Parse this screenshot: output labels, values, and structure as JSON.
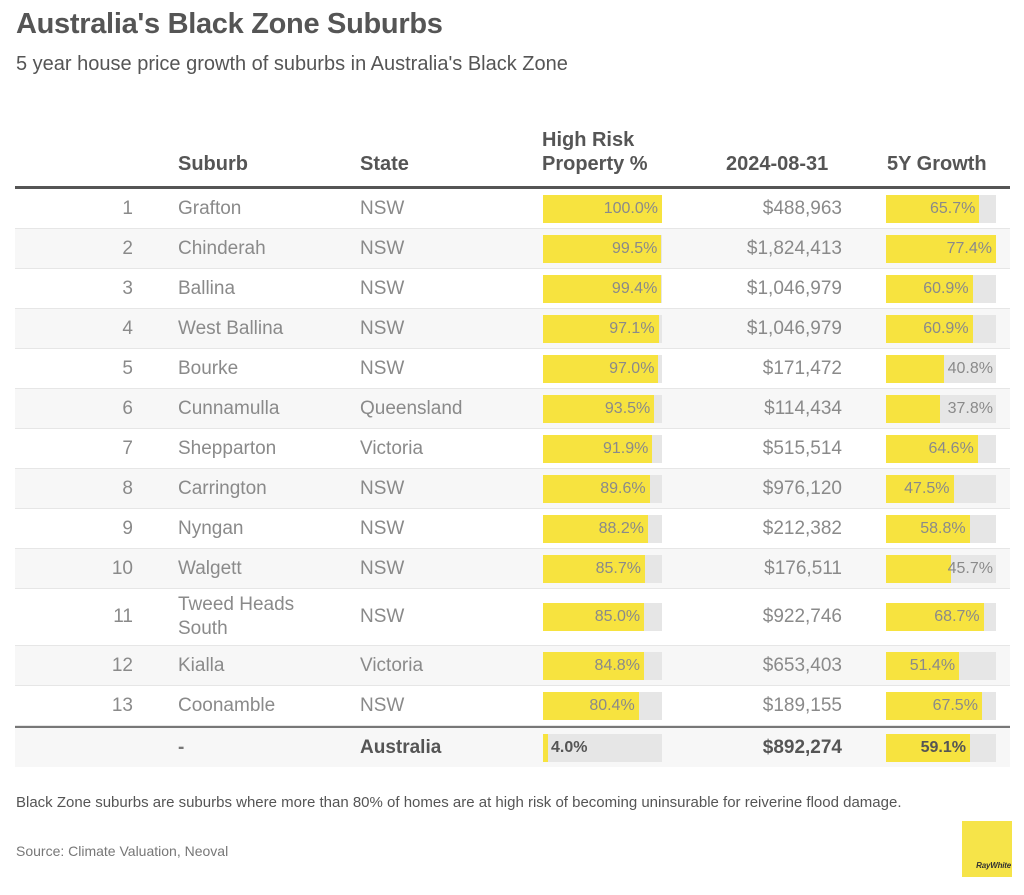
{
  "header": {
    "title": "Australia's Black Zone Suburbs",
    "subtitle": "5 year house price growth of suburbs in Australia's Black Zone"
  },
  "table": {
    "columns": {
      "suburb": "Suburb",
      "state": "State",
      "risk_line1": "High Risk",
      "risk_line2": "Property %",
      "price": "2024-08-31",
      "growth": "5Y Growth"
    },
    "rows": [
      {
        "rank": "1",
        "suburb": "Grafton",
        "state": "NSW",
        "risk": 100.0,
        "risk_label": "100.0%",
        "price": "$488,963",
        "growth": 65.7,
        "growth_label": "65.7%"
      },
      {
        "rank": "2",
        "suburb": "Chinderah",
        "state": "NSW",
        "risk": 99.5,
        "risk_label": "99.5%",
        "price": "$1,824,413",
        "growth": 77.4,
        "growth_label": "77.4%"
      },
      {
        "rank": "3",
        "suburb": "Ballina",
        "state": "NSW",
        "risk": 99.4,
        "risk_label": "99.4%",
        "price": "$1,046,979",
        "growth": 60.9,
        "growth_label": "60.9%"
      },
      {
        "rank": "4",
        "suburb": "West Ballina",
        "state": "NSW",
        "risk": 97.1,
        "risk_label": "97.1%",
        "price": "$1,046,979",
        "growth": 60.9,
        "growth_label": "60.9%"
      },
      {
        "rank": "5",
        "suburb": "Bourke",
        "state": "NSW",
        "risk": 97.0,
        "risk_label": "97.0%",
        "price": "$171,472",
        "growth": 40.8,
        "growth_label": "40.8%"
      },
      {
        "rank": "6",
        "suburb": "Cunnamulla",
        "state": "Queensland",
        "risk": 93.5,
        "risk_label": "93.5%",
        "price": "$114,434",
        "growth": 37.8,
        "growth_label": "37.8%"
      },
      {
        "rank": "7",
        "suburb": "Shepparton",
        "state": "Victoria",
        "risk": 91.9,
        "risk_label": "91.9%",
        "price": "$515,514",
        "growth": 64.6,
        "growth_label": "64.6%"
      },
      {
        "rank": "8",
        "suburb": "Carrington",
        "state": "NSW",
        "risk": 89.6,
        "risk_label": "89.6%",
        "price": "$976,120",
        "growth": 47.5,
        "growth_label": "47.5%"
      },
      {
        "rank": "9",
        "suburb": "Nyngan",
        "state": "NSW",
        "risk": 88.2,
        "risk_label": "88.2%",
        "price": "$212,382",
        "growth": 58.8,
        "growth_label": "58.8%"
      },
      {
        "rank": "10",
        "suburb": "Walgett",
        "state": "NSW",
        "risk": 85.7,
        "risk_label": "85.7%",
        "price": "$176,511",
        "growth": 45.7,
        "growth_label": "45.7%"
      },
      {
        "rank": "11",
        "suburb": "Tweed Heads South",
        "state": "NSW",
        "risk": 85.0,
        "risk_label": "85.0%",
        "price": "$922,746",
        "growth": 68.7,
        "growth_label": "68.7%"
      },
      {
        "rank": "12",
        "suburb": "Kialla",
        "state": "Victoria",
        "risk": 84.8,
        "risk_label": "84.8%",
        "price": "$653,403",
        "growth": 51.4,
        "growth_label": "51.4%"
      },
      {
        "rank": "13",
        "suburb": "Coonamble",
        "state": "NSW",
        "risk": 80.4,
        "risk_label": "80.4%",
        "price": "$189,155",
        "growth": 67.5,
        "growth_label": "67.5%"
      }
    ],
    "total": {
      "rank": "",
      "suburb": "-",
      "state": "Australia",
      "risk": 4.0,
      "risk_label": "4.0%",
      "price": "$892,274",
      "growth": 59.1,
      "growth_label": "59.1%"
    },
    "scales": {
      "risk_max": 100.0,
      "growth_max": 77.4
    }
  },
  "footer": {
    "note": "Black Zone suburbs are suburbs where more than 80% of homes are at high risk of becoming uninsurable for reiverine flood damage.",
    "source": "Source: Climate Valuation, Neoval",
    "logo_text": "RayWhite"
  },
  "colors": {
    "bar_fill": "#f7e33f",
    "bar_track": "#e6e6e6",
    "logo_bg": "#f6e449"
  }
}
